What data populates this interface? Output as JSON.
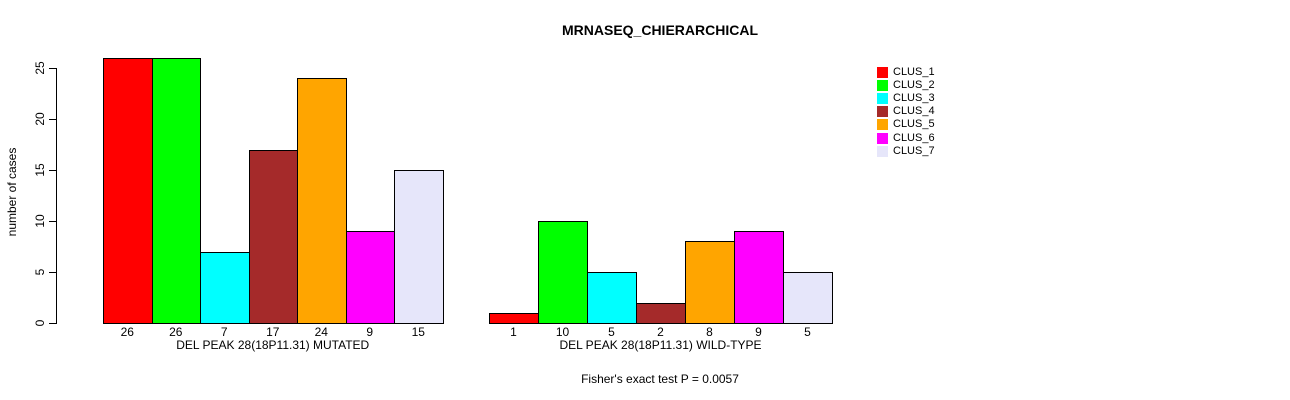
{
  "title": "MRNASEQ_CHIERARCHICAL",
  "footer": "Fisher's exact test P = 0.0057",
  "y_axis": {
    "label": "number of cases",
    "tick_labels": [
      "0",
      "5",
      "10",
      "15",
      "20",
      "25"
    ]
  },
  "chart_data": {
    "type": "bar",
    "title": "MRNASEQ_CHIERARCHICAL",
    "ylabel": "number of cases",
    "ylim": [
      0,
      26
    ],
    "yticks": [
      0,
      5,
      10,
      15,
      20,
      25
    ],
    "grid": false,
    "legend_position": "right",
    "legend": [
      "CLUS_1",
      "CLUS_2",
      "CLUS_3",
      "CLUS_4",
      "CLUS_5",
      "CLUS_6",
      "CLUS_7"
    ],
    "colors": [
      "#ff0000",
      "#00ff00",
      "#00ffff",
      "#a52a2a",
      "#ffa500",
      "#ff00ff",
      "#e6e6fa"
    ],
    "groups": [
      {
        "label": "DEL PEAK 28(18P11.31) MUTATED",
        "categories": [
          "CLUS_1",
          "CLUS_2",
          "CLUS_3",
          "CLUS_4",
          "CLUS_5",
          "CLUS_6",
          "CLUS_7"
        ],
        "values": [
          26,
          26,
          7,
          17,
          24,
          9,
          15
        ]
      },
      {
        "label": "DEL PEAK 28(18P11.31) WILD-TYPE",
        "categories": [
          "CLUS_1",
          "CLUS_2",
          "CLUS_3",
          "CLUS_4",
          "CLUS_5",
          "CLUS_6",
          "CLUS_7"
        ],
        "values": [
          1,
          10,
          5,
          2,
          8,
          9,
          5
        ]
      }
    ],
    "annotation": "Fisher's exact test P = 0.0057"
  }
}
